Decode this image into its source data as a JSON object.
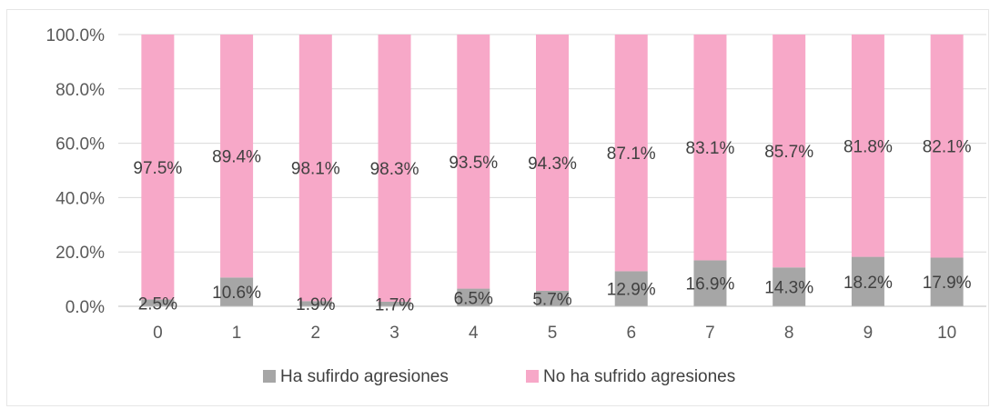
{
  "chart_data": {
    "type": "bar",
    "stacked": true,
    "categories": [
      "0",
      "1",
      "2",
      "3",
      "4",
      "5",
      "6",
      "7",
      "8",
      "9",
      "10"
    ],
    "series": [
      {
        "name": "Ha sufirdo agresiones",
        "color": "#a6a6a6",
        "values": [
          2.5,
          10.6,
          1.9,
          1.7,
          6.5,
          5.7,
          12.9,
          16.9,
          14.3,
          18.2,
          17.9
        ],
        "labels": [
          "2.5%",
          "10.6%",
          "1.9%",
          "1.7%",
          "6.5%",
          "5.7%",
          "12.9%",
          "16.9%",
          "14.3%",
          "18.2%",
          "17.9%"
        ]
      },
      {
        "name": "No ha sufrido agresiones",
        "color": "#f7a8c8",
        "values": [
          97.5,
          89.4,
          98.1,
          98.3,
          93.5,
          94.3,
          87.1,
          83.1,
          85.7,
          81.8,
          82.1
        ],
        "labels": [
          "97.5%",
          "89.4%",
          "98.1%",
          "98.3%",
          "93.5%",
          "94.3%",
          "87.1%",
          "83.1%",
          "85.7%",
          "81.8%",
          "82.1%"
        ]
      }
    ],
    "y_ticks": [
      "0.0%",
      "20.0%",
      "40.0%",
      "60.0%",
      "80.0%",
      "100.0%"
    ],
    "ylim": [
      0,
      100
    ],
    "grid": true,
    "legend_position": "bottom"
  }
}
